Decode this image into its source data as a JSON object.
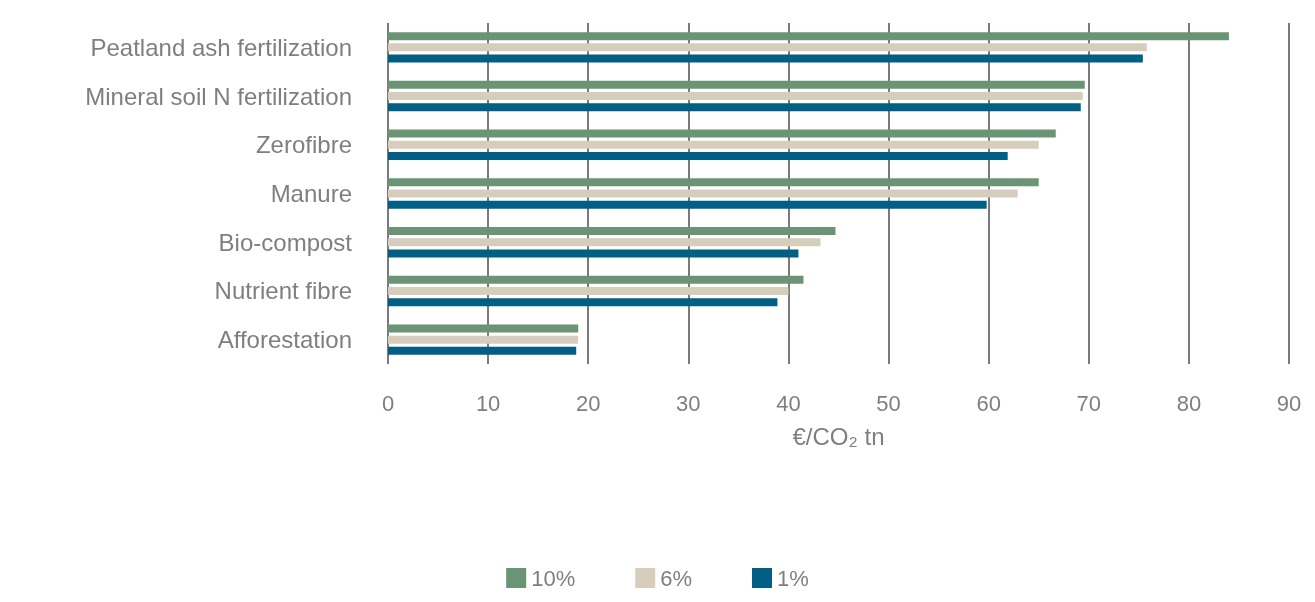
{
  "chart_data": {
    "type": "bar",
    "orientation": "horizontal",
    "xlabel": "€/CO₂ tn",
    "categories": [
      "Peatland ash fertilization",
      "Mineral soil N fertilization",
      "Zerofibre",
      "Manure",
      "Bio-compost",
      "Nutrient fibre",
      "Afforestation"
    ],
    "series": [
      {
        "name": "10%",
        "color": "#6b9474",
        "values": [
          84.0,
          69.6,
          66.7,
          65.0,
          44.7,
          41.5,
          19.0
        ]
      },
      {
        "name": "6%",
        "color": "#d6cdbd",
        "values": [
          75.8,
          69.4,
          65.0,
          62.9,
          43.2,
          40.0,
          19.0
        ]
      },
      {
        "name": "1%",
        "color": "#005f83",
        "values": [
          75.4,
          69.2,
          61.9,
          59.8,
          41.0,
          38.9,
          18.8
        ]
      }
    ],
    "xlim": [
      0,
      90
    ],
    "xticks": [
      0,
      10,
      20,
      30,
      40,
      50,
      60,
      70,
      80,
      90
    ],
    "grid": "x",
    "legend": "bottom"
  }
}
